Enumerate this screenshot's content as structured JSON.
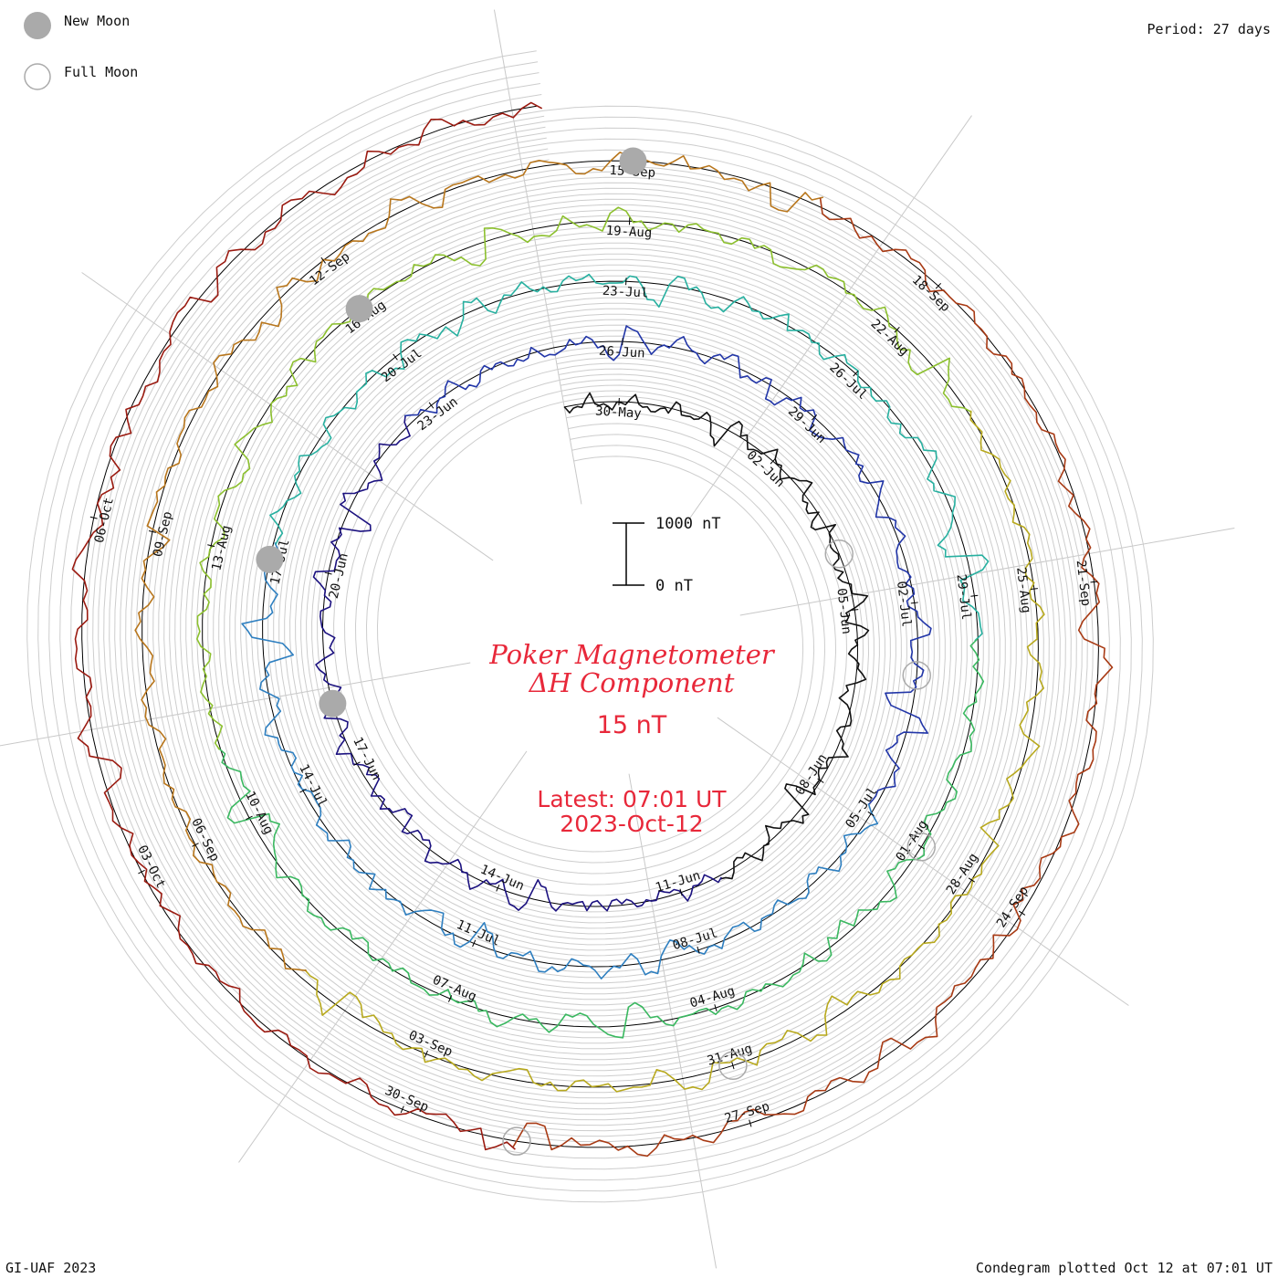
{
  "legend": {
    "new_moon_label": "New Moon",
    "full_moon_label": "Full Moon",
    "new_moon_color": "#aaaaaa",
    "full_moon_color": "#aaaaaa"
  },
  "period_label": "Period: 27 days",
  "credit_label": "GI-UAF 2023",
  "plotted_label": "Condegram plotted Oct 12 at 07:01 UT",
  "center": {
    "title_line1": "Poker Magnetometer",
    "title_line2": "ΔH Component",
    "scale_value": "15 nT",
    "latest_line1": "Latest: 07:01 UT",
    "latest_line2": "2023-Oct-12",
    "text_color": "#e8283a"
  },
  "scale_bar": {
    "top_label": "1000 nT",
    "bottom_label": "0 nT"
  },
  "chart_data": {
    "type": "line",
    "layout": "spiral condegram",
    "period_days": 27,
    "start": "2023-05-29",
    "end": "2023-10-12 07:01 UT",
    "date_labels": [
      "30-May",
      "02-Jun",
      "05-Jun",
      "08-Jun",
      "11-Jun",
      "14-Jun",
      "17-Jun",
      "20-Jun",
      "23-Jun",
      "26-Jun",
      "29-Jun",
      "02-Jul",
      "05-Jul",
      "08-Jul",
      "11-Jul",
      "14-Jul",
      "17-Jul",
      "20-Jul",
      "23-Jul",
      "26-Jul",
      "29-Jul",
      "01-Aug",
      "04-Aug",
      "07-Aug",
      "10-Aug",
      "13-Aug",
      "16-Aug",
      "19-Aug",
      "22-Aug",
      "25-Aug",
      "28-Aug",
      "31-Aug",
      "03-Sep",
      "06-Sep",
      "09-Sep",
      "12-Sep",
      "15-Sep",
      "18-Sep",
      "21-Sep",
      "24-Sep",
      "27-Sep",
      "30-Sep",
      "03-Oct",
      "06-Oct"
    ],
    "new_moons": [
      "18-Jun",
      "17-Jul",
      "16-Aug",
      "15-Sep"
    ],
    "full_moons": [
      "04-Jun",
      "03-Jul",
      "01-Aug",
      "31-Aug",
      "29-Sep"
    ],
    "series_colors": [
      "#111111",
      "#1c1280",
      "#2236a8",
      "#2e7fc0",
      "#27b0a0",
      "#3ab860",
      "#8cc02e",
      "#b8a91e",
      "#b8761c",
      "#a83a14",
      "#9a1a10"
    ],
    "trace_samples_nT": [
      0,
      -20,
      35,
      -15,
      60,
      -40,
      10,
      120,
      -80,
      30,
      -10,
      220,
      -150,
      45,
      0,
      -25,
      15,
      80,
      -60,
      20,
      -5,
      300,
      -180,
      60,
      10,
      -30,
      25,
      -12,
      90,
      -70,
      35,
      0,
      -18,
      140,
      -95,
      22,
      8,
      -40,
      60,
      -20,
      12,
      410,
      -260,
      90,
      -15,
      30,
      -8,
      55,
      -35,
      18
    ]
  }
}
